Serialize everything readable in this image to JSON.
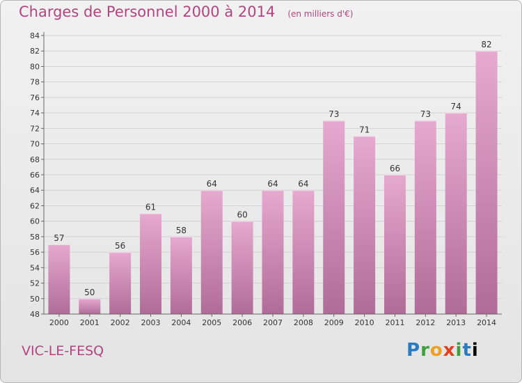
{
  "header": {
    "title": "Charges de Personnel 2000 à 2014",
    "subtitle": "(en milliers d'€)"
  },
  "footer": {
    "commune": "VIC-LE-FESQ",
    "logo_letters": [
      "P",
      "r",
      "o",
      "x",
      "i",
      "t",
      "i"
    ]
  },
  "colors": {
    "accent": "#b0457f",
    "bar_top": "#e6a9cf",
    "bar_bottom": "#b06c98"
  },
  "chart_data": {
    "type": "bar",
    "title": "Charges de Personnel 2000 à 2014",
    "subtitle": "(en milliers d'€)",
    "xlabel": "",
    "ylabel": "",
    "categories": [
      "2000",
      "2001",
      "2002",
      "2003",
      "2004",
      "2005",
      "2006",
      "2007",
      "2008",
      "2009",
      "2010",
      "2011",
      "2012",
      "2013",
      "2014"
    ],
    "values": [
      57,
      50,
      56,
      61,
      58,
      64,
      60,
      64,
      64,
      73,
      71,
      66,
      73,
      74,
      82
    ],
    "ylim": [
      48,
      84
    ],
    "yticks": [
      48,
      50,
      52,
      54,
      56,
      58,
      60,
      62,
      64,
      66,
      68,
      70,
      72,
      74,
      76,
      78,
      80,
      82,
      84
    ],
    "grid": true,
    "legend": "none"
  }
}
